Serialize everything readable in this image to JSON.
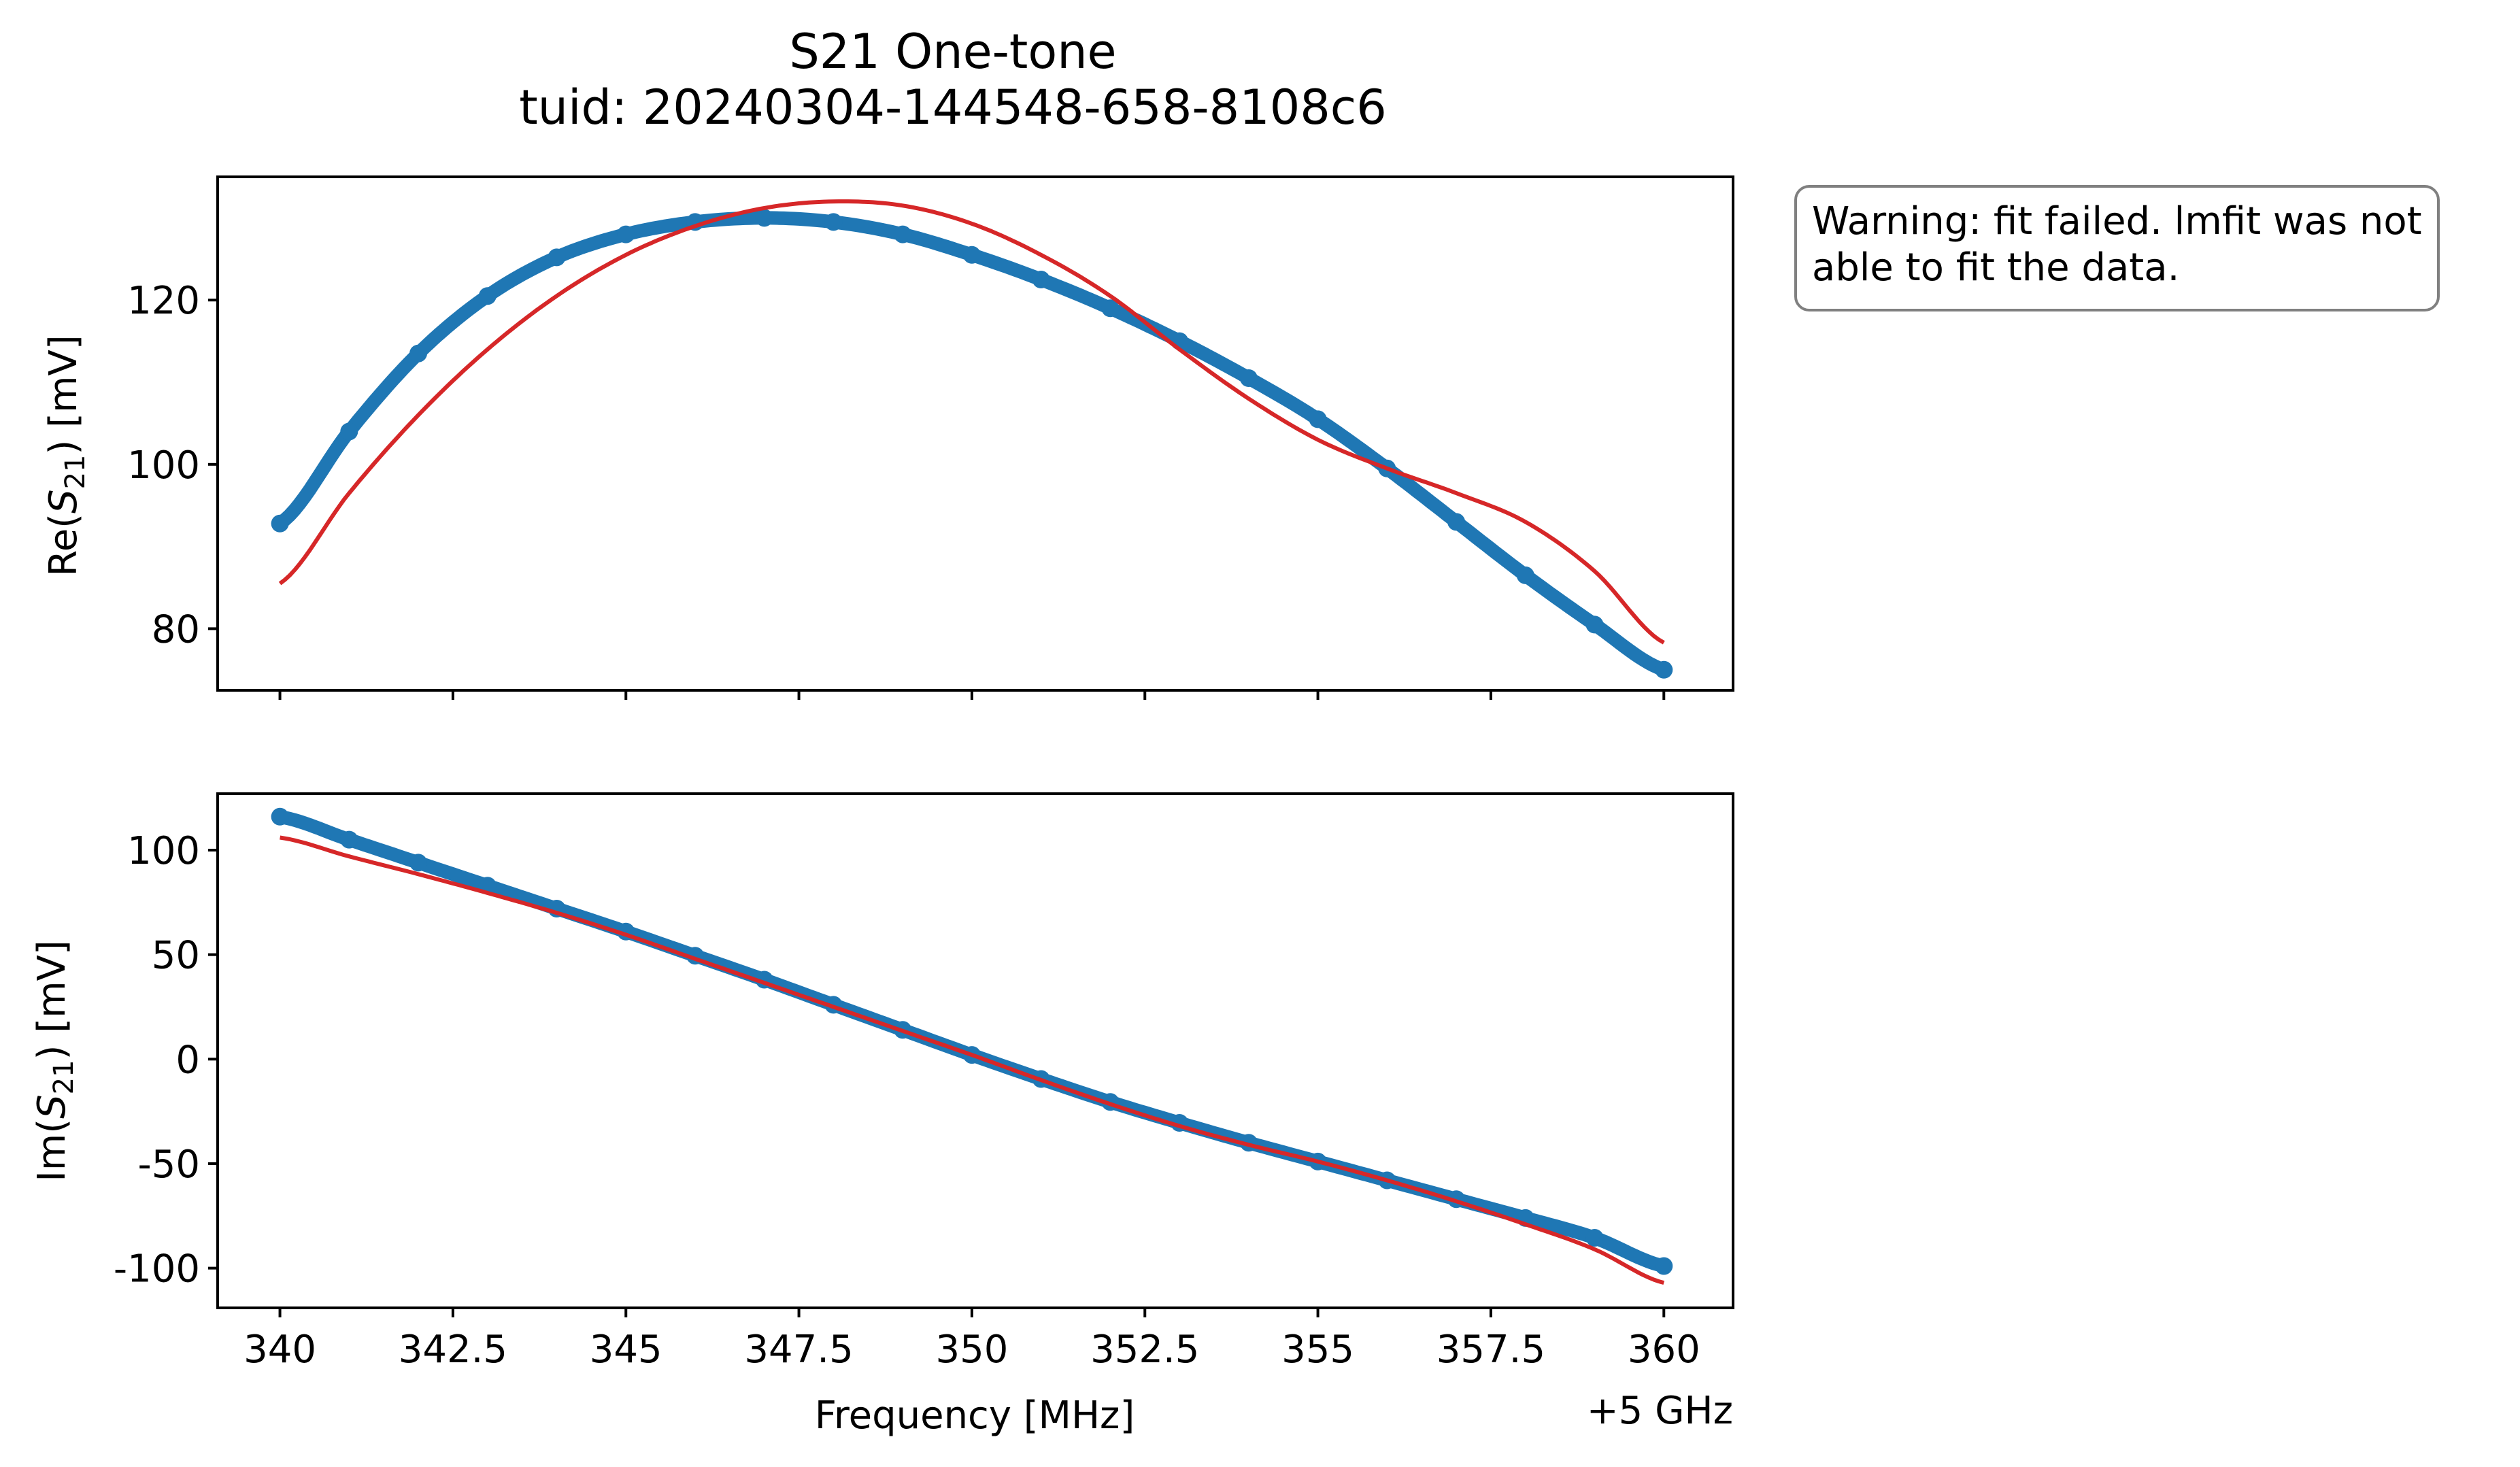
{
  "figure": {
    "title_line1": "S21 One-tone",
    "title_line2": "tuid: 20240304-144548-658-8108c6",
    "warning": "Warning: fit failed. lmfit was not\nable to fit the data.",
    "x_offset_label": "+5 GHz"
  },
  "colors": {
    "data": "#1f77b4",
    "fit": "#d62728"
  },
  "chart_data": [
    {
      "type": "scatter",
      "panel": "top",
      "ylabel_main": "Re(",
      "ylabel_var": "S",
      "ylabel_sub": "21",
      "ylabel_unit": ") [mV]",
      "xlim": [
        339.1,
        361.0
      ],
      "ylim": [
        72.5,
        135.0
      ],
      "yticks": [
        80,
        100,
        120
      ],
      "ytick_labels": [
        "80",
        "100",
        "120"
      ],
      "series": [
        {
          "kind": "data",
          "x": [
            340,
            341,
            342,
            343,
            344,
            345,
            346,
            347,
            348,
            349,
            350,
            351,
            352,
            353,
            354,
            355,
            356,
            357,
            358,
            359,
            360
          ],
          "y": [
            92.8,
            104.0,
            113.5,
            120.5,
            125.2,
            128.0,
            129.5,
            130.0,
            129.5,
            128.0,
            125.5,
            122.5,
            119.0,
            115.0,
            110.5,
            105.5,
            99.5,
            93.0,
            86.5,
            80.5,
            75.0
          ]
        },
        {
          "kind": "fit",
          "x": [
            340,
            341,
            342,
            343,
            344,
            345,
            346,
            347,
            348,
            349,
            350,
            351,
            352,
            353,
            354,
            355,
            356,
            357,
            358,
            359,
            360
          ],
          "y": [
            85.5,
            96.5,
            106.0,
            114.0,
            120.5,
            125.5,
            129.0,
            131.2,
            132.0,
            131.5,
            129.3,
            125.5,
            120.5,
            114.0,
            108.0,
            103.0,
            99.5,
            96.5,
            93.0,
            87.0,
            78.3
          ]
        }
      ]
    },
    {
      "type": "scatter",
      "panel": "bottom",
      "ylabel_main": "Im(",
      "ylabel_var": "S",
      "ylabel_sub": "21",
      "ylabel_unit": ") [mV]",
      "xlabel": "Frequency [MHz]",
      "xlim": [
        339.1,
        361.0
      ],
      "ylim": [
        -119.0,
        127.0
      ],
      "yticks": [
        -100,
        -50,
        0,
        50,
        100
      ],
      "ytick_labels": [
        "-100",
        "-50",
        "0",
        "50",
        "100"
      ],
      "xticks": [
        340,
        342.5,
        345,
        347.5,
        350,
        352.5,
        355,
        357.5,
        360
      ],
      "xtick_labels": [
        "340",
        "342.5",
        "345",
        "347.5",
        "350",
        "352.5",
        "355",
        "357.5",
        "360"
      ],
      "series": [
        {
          "kind": "data",
          "x": [
            340,
            341,
            342,
            343,
            344,
            345,
            346,
            347,
            348,
            349,
            350,
            351,
            352,
            353,
            354,
            355,
            356,
            357,
            358,
            359,
            360
          ],
          "y": [
            116.0,
            105.0,
            94.0,
            83.0,
            72.0,
            61.0,
            49.5,
            38.0,
            26.0,
            14.0,
            2.0,
            -9.5,
            -20.5,
            -30.5,
            -40.0,
            -49.0,
            -58.0,
            -67.0,
            -76.0,
            -85.5,
            -99.0
          ]
        },
        {
          "kind": "fit",
          "x": [
            340,
            341,
            342,
            343,
            344,
            345,
            346,
            347,
            348,
            349,
            350,
            351,
            352,
            353,
            354,
            355,
            356,
            357,
            358,
            359,
            360
          ],
          "y": [
            106.0,
            97.0,
            88.5,
            79.5,
            70.0,
            59.5,
            48.0,
            36.5,
            25.0,
            13.5,
            2.0,
            -10.0,
            -21.5,
            -32.0,
            -41.0,
            -49.0,
            -58.0,
            -68.0,
            -79.0,
            -91.0,
            -107.0
          ]
        }
      ]
    }
  ]
}
